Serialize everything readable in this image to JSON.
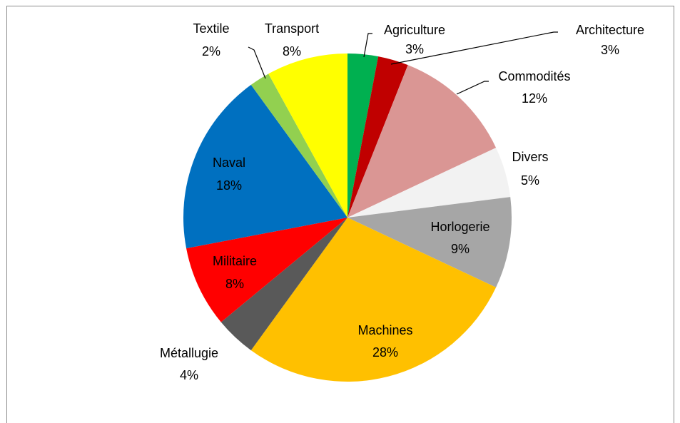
{
  "chart_data": {
    "type": "pie",
    "categories": [
      "Agriculture",
      "Architecture",
      "Commodités",
      "Divers",
      "Horlogerie",
      "Machines",
      "Métallugie",
      "Militaire",
      "Naval",
      "Textile",
      "Transport"
    ],
    "values": [
      3,
      3,
      12,
      5,
      9,
      28,
      4,
      8,
      18,
      2,
      8
    ],
    "value_labels": [
      "3%",
      "3%",
      "12%",
      "5%",
      "9%",
      "28%",
      "4%",
      "8%",
      "18%",
      "2%",
      "8%"
    ],
    "colors": [
      "#00b050",
      "#c00000",
      "#da9694",
      "#f2f2f2",
      "#a6a6a6",
      "#ffc000",
      "#595959",
      "#ff0000",
      "#0070c0",
      "#92d050",
      "#ffff00"
    ]
  }
}
